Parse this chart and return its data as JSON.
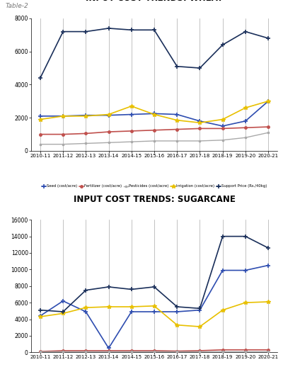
{
  "table_label": "Table-2",
  "wheat": {
    "title": "INPUT COST TRENDS: WHEAT",
    "years": [
      "2010-11",
      "2011-12",
      "2012-13",
      "2013-14",
      "2014-15",
      "2015-16",
      "2016-17",
      "2017-18",
      "2018-19",
      "2019-20",
      "2020-21"
    ],
    "seed": [
      2100,
      2100,
      2150,
      2150,
      2200,
      2250,
      2200,
      1800,
      1500,
      1800,
      3000
    ],
    "fertilizer": [
      1000,
      1000,
      1050,
      1150,
      1200,
      1250,
      1300,
      1350,
      1350,
      1400,
      1450
    ],
    "pesticides": [
      400,
      400,
      450,
      500,
      550,
      600,
      600,
      600,
      650,
      800,
      1100
    ],
    "irrigation": [
      1900,
      2100,
      2100,
      2200,
      2700,
      2200,
      1850,
      1700,
      1900,
      2600,
      3000
    ],
    "support": [
      4400,
      7200,
      7200,
      7400,
      7300,
      7300,
      5100,
      5000,
      6400,
      7200,
      6800
    ],
    "ylim": [
      0,
      8000
    ],
    "yticks": [
      0,
      2000,
      4000,
      6000,
      8000
    ]
  },
  "sugarcane": {
    "title": "INPUT COST TRENDS: SUGARCANE",
    "years": [
      "2010-11",
      "2011-12",
      "2012-13",
      "2013-14",
      "2014-15",
      "2015-16",
      "2016-17",
      "2017-18",
      "2018-19",
      "2019-20",
      "2020-21"
    ],
    "seed": [
      4400,
      6200,
      4900,
      500,
      4900,
      4900,
      4900,
      5100,
      9900,
      9900,
      10500
    ],
    "fertilizer": [
      100,
      200,
      200,
      200,
      200,
      200,
      150,
      200,
      300,
      300,
      300
    ],
    "pesticides": [
      100,
      100,
      100,
      100,
      100,
      100,
      100,
      100,
      100,
      100,
      100
    ],
    "irrigation": [
      4300,
      4700,
      5400,
      5500,
      5500,
      5600,
      3300,
      3100,
      5100,
      6000,
      6100
    ],
    "support": [
      5100,
      4900,
      7500,
      7900,
      7600,
      7900,
      5500,
      5300,
      14000,
      14000,
      12600
    ],
    "ylim": [
      0,
      16000
    ],
    "yticks": [
      0,
      2000,
      4000,
      6000,
      8000,
      10000,
      12000,
      14000,
      16000
    ]
  },
  "colors": {
    "seed": "#2e4db0",
    "fertilizer": "#c0504d",
    "pesticides": "#aaaaaa",
    "irrigation": "#e8c000",
    "support": "#1a2f5a"
  },
  "legend_labels": {
    "seed": "Seed (cost/acre)",
    "fertilizer": "Fertilizer (cost/acre)",
    "pesticides": "Pesticides (cost/acre)",
    "irrigation": "Irrigation (cost/acre)",
    "support": "Support Price (Rs./40kg)"
  },
  "bg_color": "#ffffff"
}
